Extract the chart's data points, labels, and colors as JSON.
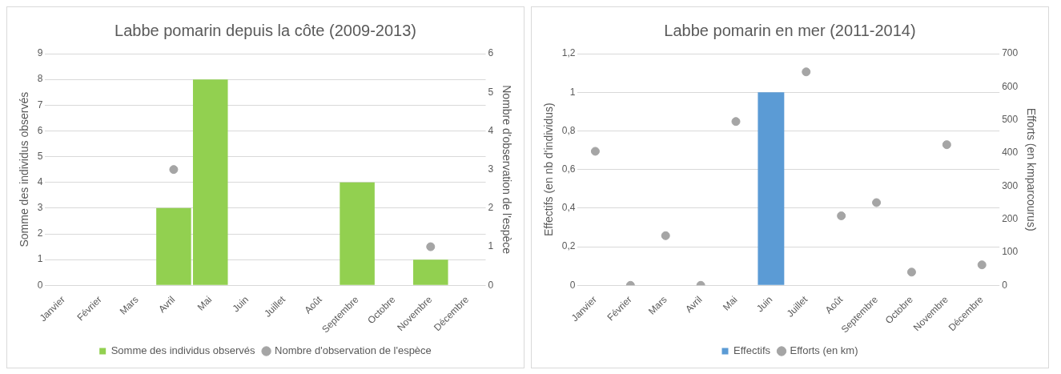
{
  "chart_data": [
    {
      "type": "bar",
      "title": "Labbe pomarin depuis la côte (2009-2013)",
      "ylabel": "Somme des individus observés",
      "y2label": "Nombre d'observation de l'espèce",
      "categories": [
        "Janvier",
        "Février",
        "Mars",
        "Avril",
        "Mai",
        "Juin",
        "Juillet",
        "Août",
        "Septembre",
        "Octobre",
        "Novembre",
        "Décembre"
      ],
      "series": [
        {
          "name": "Somme des individus observés",
          "color": "#92d050",
          "values": [
            0,
            0,
            0,
            3,
            8,
            0,
            0,
            0,
            4,
            0,
            1,
            0
          ]
        },
        {
          "name": "Nombre d'observation de l'espèce",
          "type": "scatter",
          "axis": "y2",
          "color": "#a5a5a5",
          "values": [
            null,
            null,
            null,
            3,
            null,
            null,
            null,
            null,
            null,
            null,
            1,
            null
          ]
        }
      ],
      "ylim": [
        0,
        9
      ],
      "yticks": [
        0,
        1,
        2,
        3,
        4,
        5,
        6,
        7,
        8,
        9
      ],
      "y2lim": [
        0,
        6
      ],
      "y2ticks": [
        0,
        1,
        2,
        3,
        4,
        5,
        6
      ],
      "grid": "y",
      "legend": "bottom",
      "marker": "circle"
    },
    {
      "type": "bar",
      "title": "Labbe pomarin en mer (2011-2014)",
      "ylabel": "Effectifs (en nb d'individus)",
      "y2label": "Efforts (en kmparcourus)",
      "categories": [
        "Janvier",
        "Février",
        "Mars",
        "Avril",
        "Mai",
        "Juin",
        "Juillet",
        "Août",
        "Septembre",
        "Octobre",
        "Novembre",
        "Décembre"
      ],
      "series": [
        {
          "name": "Effectifs",
          "color": "#5b9bd5",
          "values": [
            0,
            0,
            0,
            0,
            0,
            1,
            0,
            0,
            0,
            0,
            0,
            0
          ]
        },
        {
          "name": "Efforts (en km)",
          "type": "scatter",
          "axis": "y2",
          "color": "#a5a5a5",
          "values": [
            405,
            0,
            150,
            0,
            495,
            null,
            645,
            210,
            250,
            40,
            425,
            62
          ]
        }
      ],
      "ylim": [
        0,
        1.2
      ],
      "yticks": [
        0,
        {
          "value": 0.2,
          "label": "0,2"
        },
        {
          "value": 0.4,
          "label": "0,4"
        },
        {
          "value": 0.6,
          "label": "0,6"
        },
        {
          "value": 0.8,
          "label": "0,8"
        },
        1,
        {
          "value": 1.2,
          "label": "1,2"
        }
      ],
      "y2lim": [
        0,
        700
      ],
      "y2ticks": [
        0,
        100,
        200,
        300,
        400,
        500,
        600,
        700
      ],
      "grid": "y",
      "legend": "bottom",
      "marker": "circle"
    }
  ]
}
